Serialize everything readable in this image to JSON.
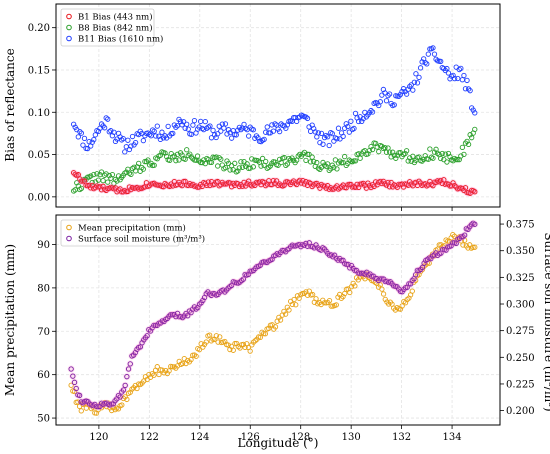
{
  "chart_data": [
    {
      "type": "scatter",
      "ylabel": "Bias of reflectance",
      "xlim": [
        118.3,
        135.9
      ],
      "ylim": [
        -0.012,
        0.228
      ],
      "yticks": [
        "0.00",
        "0.05",
        "0.10",
        "0.15",
        "0.20"
      ],
      "grid": true,
      "legend_position": "top-left",
      "series": [
        {
          "name": "B1 Bias (443 nm)",
          "color": "#e8141b",
          "x": [
            119.0,
            119.3,
            119.6,
            120.0,
            120.3,
            120.6,
            121.0,
            121.3,
            121.6,
            122.0,
            122.3,
            122.6,
            123.0,
            123.3,
            123.6,
            124.0,
            124.3,
            124.6,
            125.0,
            125.3,
            125.6,
            126.0,
            126.3,
            126.6,
            127.0,
            127.3,
            127.6,
            128.0,
            128.3,
            128.6,
            129.0,
            129.3,
            129.6,
            130.0,
            130.3,
            130.6,
            131.0,
            131.3,
            131.6,
            132.0,
            132.3,
            132.6,
            133.0,
            133.3,
            133.6,
            134.0,
            134.3,
            134.6,
            134.9
          ],
          "y": [
            0.03,
            0.02,
            0.012,
            0.01,
            0.01,
            0.008,
            0.008,
            0.01,
            0.012,
            0.015,
            0.016,
            0.014,
            0.015,
            0.016,
            0.015,
            0.014,
            0.015,
            0.016,
            0.015,
            0.014,
            0.015,
            0.016,
            0.015,
            0.016,
            0.017,
            0.015,
            0.016,
            0.017,
            0.016,
            0.014,
            0.012,
            0.011,
            0.012,
            0.013,
            0.014,
            0.013,
            0.015,
            0.016,
            0.014,
            0.013,
            0.015,
            0.016,
            0.015,
            0.016,
            0.018,
            0.015,
            0.01,
            0.008,
            0.006
          ]
        },
        {
          "name": "B8 Bias (842 nm)",
          "color": "#2ca02c",
          "x": [
            119.0,
            119.3,
            119.6,
            120.0,
            120.3,
            120.6,
            121.0,
            121.3,
            121.6,
            122.0,
            122.3,
            122.6,
            123.0,
            123.3,
            123.6,
            124.0,
            124.3,
            124.6,
            125.0,
            125.3,
            125.6,
            126.0,
            126.3,
            126.6,
            127.0,
            127.3,
            127.6,
            128.0,
            128.3,
            128.6,
            129.0,
            129.3,
            129.6,
            130.0,
            130.3,
            130.6,
            131.0,
            131.3,
            131.6,
            132.0,
            132.3,
            132.6,
            133.0,
            133.3,
            133.6,
            134.0,
            134.3,
            134.6,
            134.9
          ],
          "y": [
            0.01,
            0.015,
            0.02,
            0.025,
            0.022,
            0.02,
            0.025,
            0.03,
            0.035,
            0.04,
            0.045,
            0.05,
            0.045,
            0.048,
            0.052,
            0.045,
            0.04,
            0.042,
            0.038,
            0.035,
            0.036,
            0.04,
            0.042,
            0.038,
            0.04,
            0.042,
            0.045,
            0.048,
            0.045,
            0.04,
            0.035,
            0.038,
            0.04,
            0.045,
            0.05,
            0.055,
            0.06,
            0.058,
            0.052,
            0.05,
            0.048,
            0.045,
            0.05,
            0.052,
            0.048,
            0.045,
            0.05,
            0.06,
            0.08
          ]
        },
        {
          "name": "B11 Bias (1610 nm)",
          "color": "#1f3dff",
          "x": [
            119.0,
            119.3,
            119.6,
            120.0,
            120.3,
            120.6,
            121.0,
            121.3,
            121.6,
            122.0,
            122.3,
            122.6,
            123.0,
            123.3,
            123.6,
            124.0,
            124.3,
            124.6,
            125.0,
            125.3,
            125.6,
            126.0,
            126.3,
            126.6,
            127.0,
            127.3,
            127.6,
            128.0,
            128.3,
            128.6,
            129.0,
            129.3,
            129.6,
            130.0,
            130.3,
            130.6,
            131.0,
            131.3,
            131.6,
            132.0,
            132.3,
            132.6,
            133.0,
            133.3,
            133.6,
            134.0,
            134.3,
            134.6,
            134.9
          ],
          "y": [
            0.09,
            0.07,
            0.06,
            0.08,
            0.09,
            0.075,
            0.06,
            0.065,
            0.07,
            0.075,
            0.08,
            0.07,
            0.085,
            0.09,
            0.08,
            0.085,
            0.08,
            0.075,
            0.08,
            0.075,
            0.08,
            0.078,
            0.072,
            0.075,
            0.08,
            0.085,
            0.09,
            0.095,
            0.088,
            0.075,
            0.065,
            0.07,
            0.075,
            0.085,
            0.095,
            0.1,
            0.11,
            0.12,
            0.115,
            0.12,
            0.125,
            0.14,
            0.165,
            0.17,
            0.155,
            0.14,
            0.15,
            0.13,
            0.1
          ]
        }
      ]
    },
    {
      "type": "scatter",
      "xlabel": "Longitude (°)",
      "ylabel": "Mean precipitation (mm)",
      "y2label": "Surface soil moisture (m³/m³)",
      "xlim": [
        118.3,
        135.9
      ],
      "ylim": [
        48.4,
        96.8
      ],
      "y2lim": [
        0.1865,
        0.3835
      ],
      "xticks": [
        "120",
        "122",
        "124",
        "126",
        "128",
        "130",
        "132",
        "134"
      ],
      "yticks": [
        "50",
        "60",
        "70",
        "80",
        "90"
      ],
      "y2ticks": [
        "0.200",
        "0.225",
        "0.250",
        "0.275",
        "0.300",
        "0.325",
        "0.350",
        "0.375"
      ],
      "grid": true,
      "legend_position": "top-left",
      "series": [
        {
          "name": "Mean precipitation (mm)",
          "color": "#e8a317",
          "x": [
            118.9,
            119.1,
            119.3,
            119.5,
            119.7,
            120.0,
            120.3,
            120.6,
            121.0,
            121.3,
            121.6,
            122.0,
            122.3,
            122.6,
            123.0,
            123.3,
            123.6,
            124.0,
            124.3,
            124.6,
            125.0,
            125.3,
            125.6,
            126.0,
            126.3,
            126.6,
            127.0,
            127.3,
            127.6,
            128.0,
            128.3,
            128.6,
            129.0,
            129.3,
            129.6,
            130.0,
            130.3,
            130.6,
            130.9,
            131.2,
            131.5,
            131.8,
            132.0,
            132.3,
            132.6,
            133.0,
            133.3,
            133.6,
            134.0,
            134.3,
            134.6,
            134.9
          ],
          "y": [
            58,
            54,
            52,
            53,
            52,
            52,
            53,
            52,
            54,
            57,
            58,
            60,
            61,
            60,
            62,
            63,
            63,
            66,
            68,
            69,
            67,
            66,
            67,
            66,
            68,
            70,
            71,
            74,
            76,
            78,
            79,
            77,
            77,
            76,
            78,
            80,
            82,
            83,
            82,
            80,
            76,
            75,
            76,
            78,
            82,
            85,
            88,
            90,
            92,
            91,
            90,
            89
          ]
        },
        {
          "name": "Surface soil moisture (m³/m³)",
          "color": "#7b1fa2",
          "x": [
            118.9,
            119.1,
            119.3,
            119.5,
            119.7,
            120.0,
            120.3,
            120.6,
            121.0,
            121.3,
            121.6,
            122.0,
            122.3,
            122.6,
            123.0,
            123.3,
            123.6,
            124.0,
            124.3,
            124.6,
            125.0,
            125.3,
            125.6,
            126.0,
            126.3,
            126.6,
            127.0,
            127.3,
            127.6,
            128.0,
            128.3,
            128.6,
            129.0,
            129.3,
            129.6,
            130.0,
            130.3,
            130.6,
            130.9,
            131.2,
            131.5,
            131.8,
            132.0,
            132.3,
            132.6,
            133.0,
            133.3,
            133.6,
            134.0,
            134.3,
            134.6,
            134.9
          ],
          "y": [
            0.24,
            0.22,
            0.21,
            0.208,
            0.206,
            0.205,
            0.207,
            0.206,
            0.22,
            0.25,
            0.26,
            0.275,
            0.28,
            0.285,
            0.29,
            0.288,
            0.292,
            0.3,
            0.31,
            0.31,
            0.312,
            0.32,
            0.322,
            0.33,
            0.335,
            0.34,
            0.345,
            0.35,
            0.353,
            0.355,
            0.356,
            0.354,
            0.35,
            0.345,
            0.34,
            0.335,
            0.33,
            0.328,
            0.325,
            0.322,
            0.32,
            0.315,
            0.312,
            0.318,
            0.33,
            0.34,
            0.345,
            0.35,
            0.355,
            0.36,
            0.37,
            0.375
          ]
        }
      ]
    }
  ]
}
